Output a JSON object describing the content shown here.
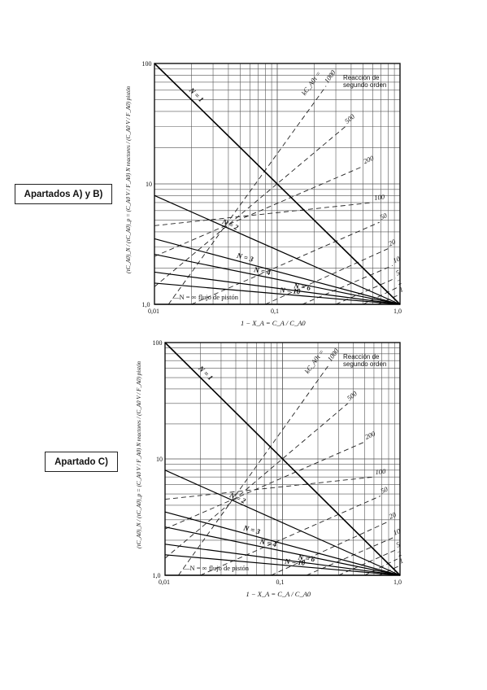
{
  "labels": {
    "box1": "Apartados A) y B)",
    "box2": "Apartado C)"
  },
  "chart_data": [
    {
      "type": "line",
      "title": "",
      "xlabel": "1 − X_A = C_A / C_A0",
      "ylabel": "(τC_A0)_N / (τC_A0)_p = (C_A0 V / F_A0) N reactores / (C_A0 V / F_A0) pistón",
      "xscale": "log",
      "yscale": "log",
      "xlim": [
        0.01,
        1.0
      ],
      "ylim": [
        1.0,
        100
      ],
      "grid": true,
      "x_tick_labels": [
        "0,01",
        "0,1",
        "1,0"
      ],
      "y_tick_labels": [
        "1,0",
        "10",
        "100"
      ],
      "annotation": [
        "Reacción de",
        "segundo orden"
      ],
      "series": [
        {
          "name": "N = 1",
          "x": [
            0.01,
            1.0
          ],
          "y": [
            100,
            1
          ]
        },
        {
          "name": "N = 2",
          "x": [
            0.01,
            1.0
          ],
          "y": [
            8.0,
            1
          ]
        },
        {
          "name": "N = 3",
          "x": [
            0.01,
            1.0
          ],
          "y": [
            3.5,
            1
          ]
        },
        {
          "name": "N = 4",
          "x": [
            0.01,
            1.0
          ],
          "y": [
            2.6,
            1
          ]
        },
        {
          "name": "N = 6",
          "x": [
            0.01,
            1.0
          ],
          "y": [
            1.85,
            1
          ]
        },
        {
          "name": "N = 10",
          "x": [
            0.01,
            1.0
          ],
          "y": [
            1.5,
            1
          ]
        },
        {
          "name": "N = ∞ flujo de pistón",
          "x": [
            0.01,
            1.0
          ],
          "y": [
            1,
            1
          ]
        }
      ],
      "iso_k_label": "kC_A0τ =",
      "iso_k": [
        {
          "label": "1000",
          "x": [
            0.013,
            0.25
          ],
          "y": [
            1.0,
            65
          ]
        },
        {
          "label": "500",
          "x": [
            0.01,
            0.36
          ],
          "y": [
            1.4,
            30
          ]
        },
        {
          "label": "200",
          "x": [
            0.01,
            0.5
          ],
          "y": [
            2.5,
            14
          ]
        },
        {
          "label": "100",
          "x": [
            0.01,
            0.6
          ],
          "y": [
            4.5,
            7.0
          ]
        },
        {
          "label": "50",
          "x": [
            0.02,
            0.68
          ],
          "y": [
            1.0,
            4.8
          ]
        },
        {
          "label": "20",
          "x": [
            0.08,
            0.8
          ],
          "y": [
            1.0,
            2.9
          ]
        },
        {
          "label": "10",
          "x": [
            0.16,
            0.87
          ],
          "y": [
            1.0,
            2.1
          ]
        },
        {
          "label": "5",
          "x": [
            0.3,
            0.92
          ],
          "y": [
            1.0,
            1.65
          ]
        },
        {
          "label": "2",
          "x": [
            0.5,
            0.95
          ],
          "y": [
            1.0,
            1.38
          ]
        },
        {
          "label": "1",
          "x": [
            0.66,
            0.98
          ],
          "y": [
            1.0,
            1.2
          ]
        }
      ]
    },
    {
      "type": "line",
      "title": "",
      "xlabel": "1 − X_A = C_A / C_A0",
      "ylabel": "(τC_A0)_N / (τC_A0)_p = (C_A0 V / F_A0) N reactores / (C_A0 V / F_A0) pistón",
      "xscale": "log",
      "yscale": "log",
      "xlim": [
        0.01,
        1.0
      ],
      "ylim": [
        1.0,
        100
      ],
      "grid": true,
      "x_tick_labels": [
        "0,01",
        "0,1",
        "1,0"
      ],
      "y_tick_labels": [
        "1,0",
        "10",
        "100"
      ],
      "annotation": [
        "Reacción de",
        "segundo orden"
      ],
      "series": [
        {
          "name": "N = 1",
          "x": [
            0.01,
            1.0
          ],
          "y": [
            100,
            1
          ]
        },
        {
          "name": "N = 2",
          "x": [
            0.01,
            1.0
          ],
          "y": [
            8.0,
            1
          ]
        },
        {
          "name": "N = 3",
          "x": [
            0.01,
            1.0
          ],
          "y": [
            3.5,
            1
          ]
        },
        {
          "name": "N = 4",
          "x": [
            0.01,
            1.0
          ],
          "y": [
            2.6,
            1
          ]
        },
        {
          "name": "N = 6",
          "x": [
            0.01,
            1.0
          ],
          "y": [
            1.85,
            1
          ]
        },
        {
          "name": "N = 10",
          "x": [
            0.01,
            1.0
          ],
          "y": [
            1.5,
            1
          ]
        },
        {
          "name": "N = ∞ flujo de pistón",
          "x": [
            0.01,
            1.0
          ],
          "y": [
            1,
            1
          ]
        }
      ],
      "iso_k_label": "kC_A0τ =",
      "iso_k": [
        {
          "label": "1000",
          "x": [
            0.013,
            0.25
          ],
          "y": [
            1.0,
            65
          ]
        },
        {
          "label": "500",
          "x": [
            0.01,
            0.36
          ],
          "y": [
            1.4,
            30
          ]
        },
        {
          "label": "200",
          "x": [
            0.01,
            0.5
          ],
          "y": [
            2.5,
            14
          ]
        },
        {
          "label": "100",
          "x": [
            0.01,
            0.6
          ],
          "y": [
            4.5,
            7.0
          ]
        },
        {
          "label": "50",
          "x": [
            0.02,
            0.68
          ],
          "y": [
            1.0,
            4.8
          ]
        },
        {
          "label": "20",
          "x": [
            0.08,
            0.8
          ],
          "y": [
            1.0,
            2.9
          ]
        },
        {
          "label": "10",
          "x": [
            0.16,
            0.87
          ],
          "y": [
            1.0,
            2.1
          ]
        },
        {
          "label": "5",
          "x": [
            0.3,
            0.92
          ],
          "y": [
            1.0,
            1.65
          ]
        },
        {
          "label": "2",
          "x": [
            0.5,
            0.95
          ],
          "y": [
            1.0,
            1.38
          ]
        },
        {
          "label": "1",
          "x": [
            0.66,
            0.98
          ],
          "y": [
            1.0,
            1.2
          ]
        }
      ]
    }
  ]
}
